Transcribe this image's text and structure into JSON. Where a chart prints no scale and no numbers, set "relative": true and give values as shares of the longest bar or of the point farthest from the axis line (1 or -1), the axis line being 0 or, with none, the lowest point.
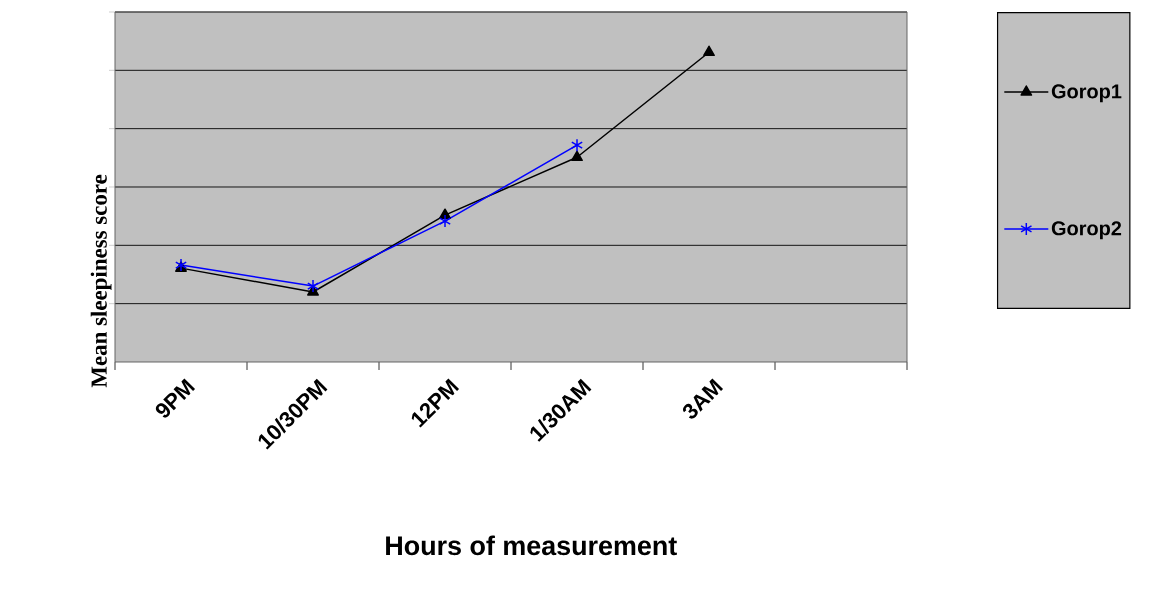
{
  "chart_data": {
    "type": "line",
    "xlabel": "Hours of measurement",
    "ylabel": "Mean sleepiness score",
    "categories": [
      "9PM",
      "10/30PM",
      "12PM",
      "1/30AM",
      "3AM",
      null
    ],
    "relative": true,
    "grid": "y",
    "legend": "right",
    "line_style": "solid",
    "series": [
      {
        "name": "Gorop1",
        "color": "#000000",
        "marker": "triangle",
        "values": [
          0.303,
          0.226,
          0.474,
          0.661,
          1,
          null
        ]
      },
      {
        "name": "Gorop2",
        "color": "#0000ff",
        "marker": "cross",
        "values": [
          0.313,
          0.245,
          0.455,
          0.7,
          null,
          null
        ]
      }
    ]
  }
}
